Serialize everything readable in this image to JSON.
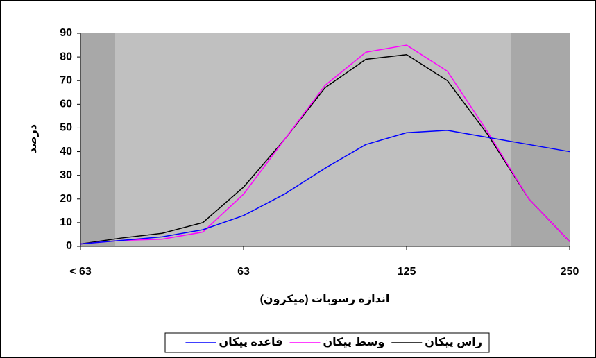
{
  "chart_data": {
    "type": "line",
    "x_label": "اندازه رسوبات (میکرون)",
    "y_label": "درصد",
    "x": [
      0,
      0.25,
      0.5,
      0.75,
      1,
      1.25,
      1.5,
      1.75,
      2,
      2.25,
      2.5,
      2.75,
      3
    ],
    "xlim": [
      0,
      3
    ],
    "xticks": [
      {
        "value": 0,
        "label": "< 63"
      },
      {
        "value": 1,
        "label": "63"
      },
      {
        "value": 2,
        "label": "125"
      },
      {
        "value": 3,
        "label": "250"
      }
    ],
    "ylim": [
      0,
      90
    ],
    "yticks": [
      0,
      10,
      20,
      30,
      40,
      50,
      60,
      70,
      80,
      90
    ],
    "series": [
      {
        "name": "راس پیکان",
        "color": "#000000",
        "values": [
          1,
          3.5,
          5.5,
          10,
          25,
          45,
          67,
          79,
          81,
          70,
          47,
          20,
          2
        ]
      },
      {
        "name": "وسط پیکان",
        "color": "#ff00ff",
        "values": [
          1,
          2.5,
          3,
          6,
          22,
          45,
          68,
          82,
          85,
          74,
          48,
          20,
          2
        ]
      },
      {
        "name": "قاعده پیکان",
        "color": "#0000ff",
        "values": [
          1,
          2.5,
          4,
          7,
          13,
          22,
          33,
          43,
          48,
          49,
          46,
          43,
          40
        ]
      }
    ]
  }
}
